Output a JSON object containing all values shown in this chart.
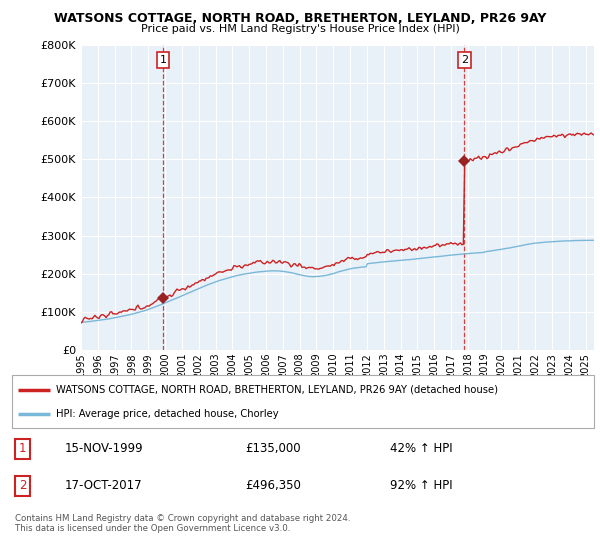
{
  "title": "WATSONS COTTAGE, NORTH ROAD, BRETHERTON, LEYLAND, PR26 9AY",
  "subtitle": "Price paid vs. HM Land Registry's House Price Index (HPI)",
  "legend_line1": "WATSONS COTTAGE, NORTH ROAD, BRETHERTON, LEYLAND, PR26 9AY (detached house)",
  "legend_line2": "HPI: Average price, detached house, Chorley",
  "annotation1_label": "1",
  "annotation1_date": "15-NOV-1999",
  "annotation1_price": "£135,000",
  "annotation1_hpi": "42% ↑ HPI",
  "annotation2_label": "2",
  "annotation2_date": "17-OCT-2017",
  "annotation2_price": "£496,350",
  "annotation2_hpi": "92% ↑ HPI",
  "footer": "Contains HM Land Registry data © Crown copyright and database right 2024.\nThis data is licensed under the Open Government Licence v3.0.",
  "sale1_year": 1999.88,
  "sale1_value": 135000,
  "sale2_year": 2017.79,
  "sale2_value": 496350,
  "hpi_color": "#7ab8d9",
  "price_color": "#cc2222",
  "sale_marker_color": "#992222",
  "plot_bg_color": "#e8f0f8",
  "background_color": "#ffffff",
  "grid_color": "#ffffff",
  "ylim": [
    0,
    800000
  ],
  "xlim_start": 1995,
  "xlim_end": 2025.5
}
